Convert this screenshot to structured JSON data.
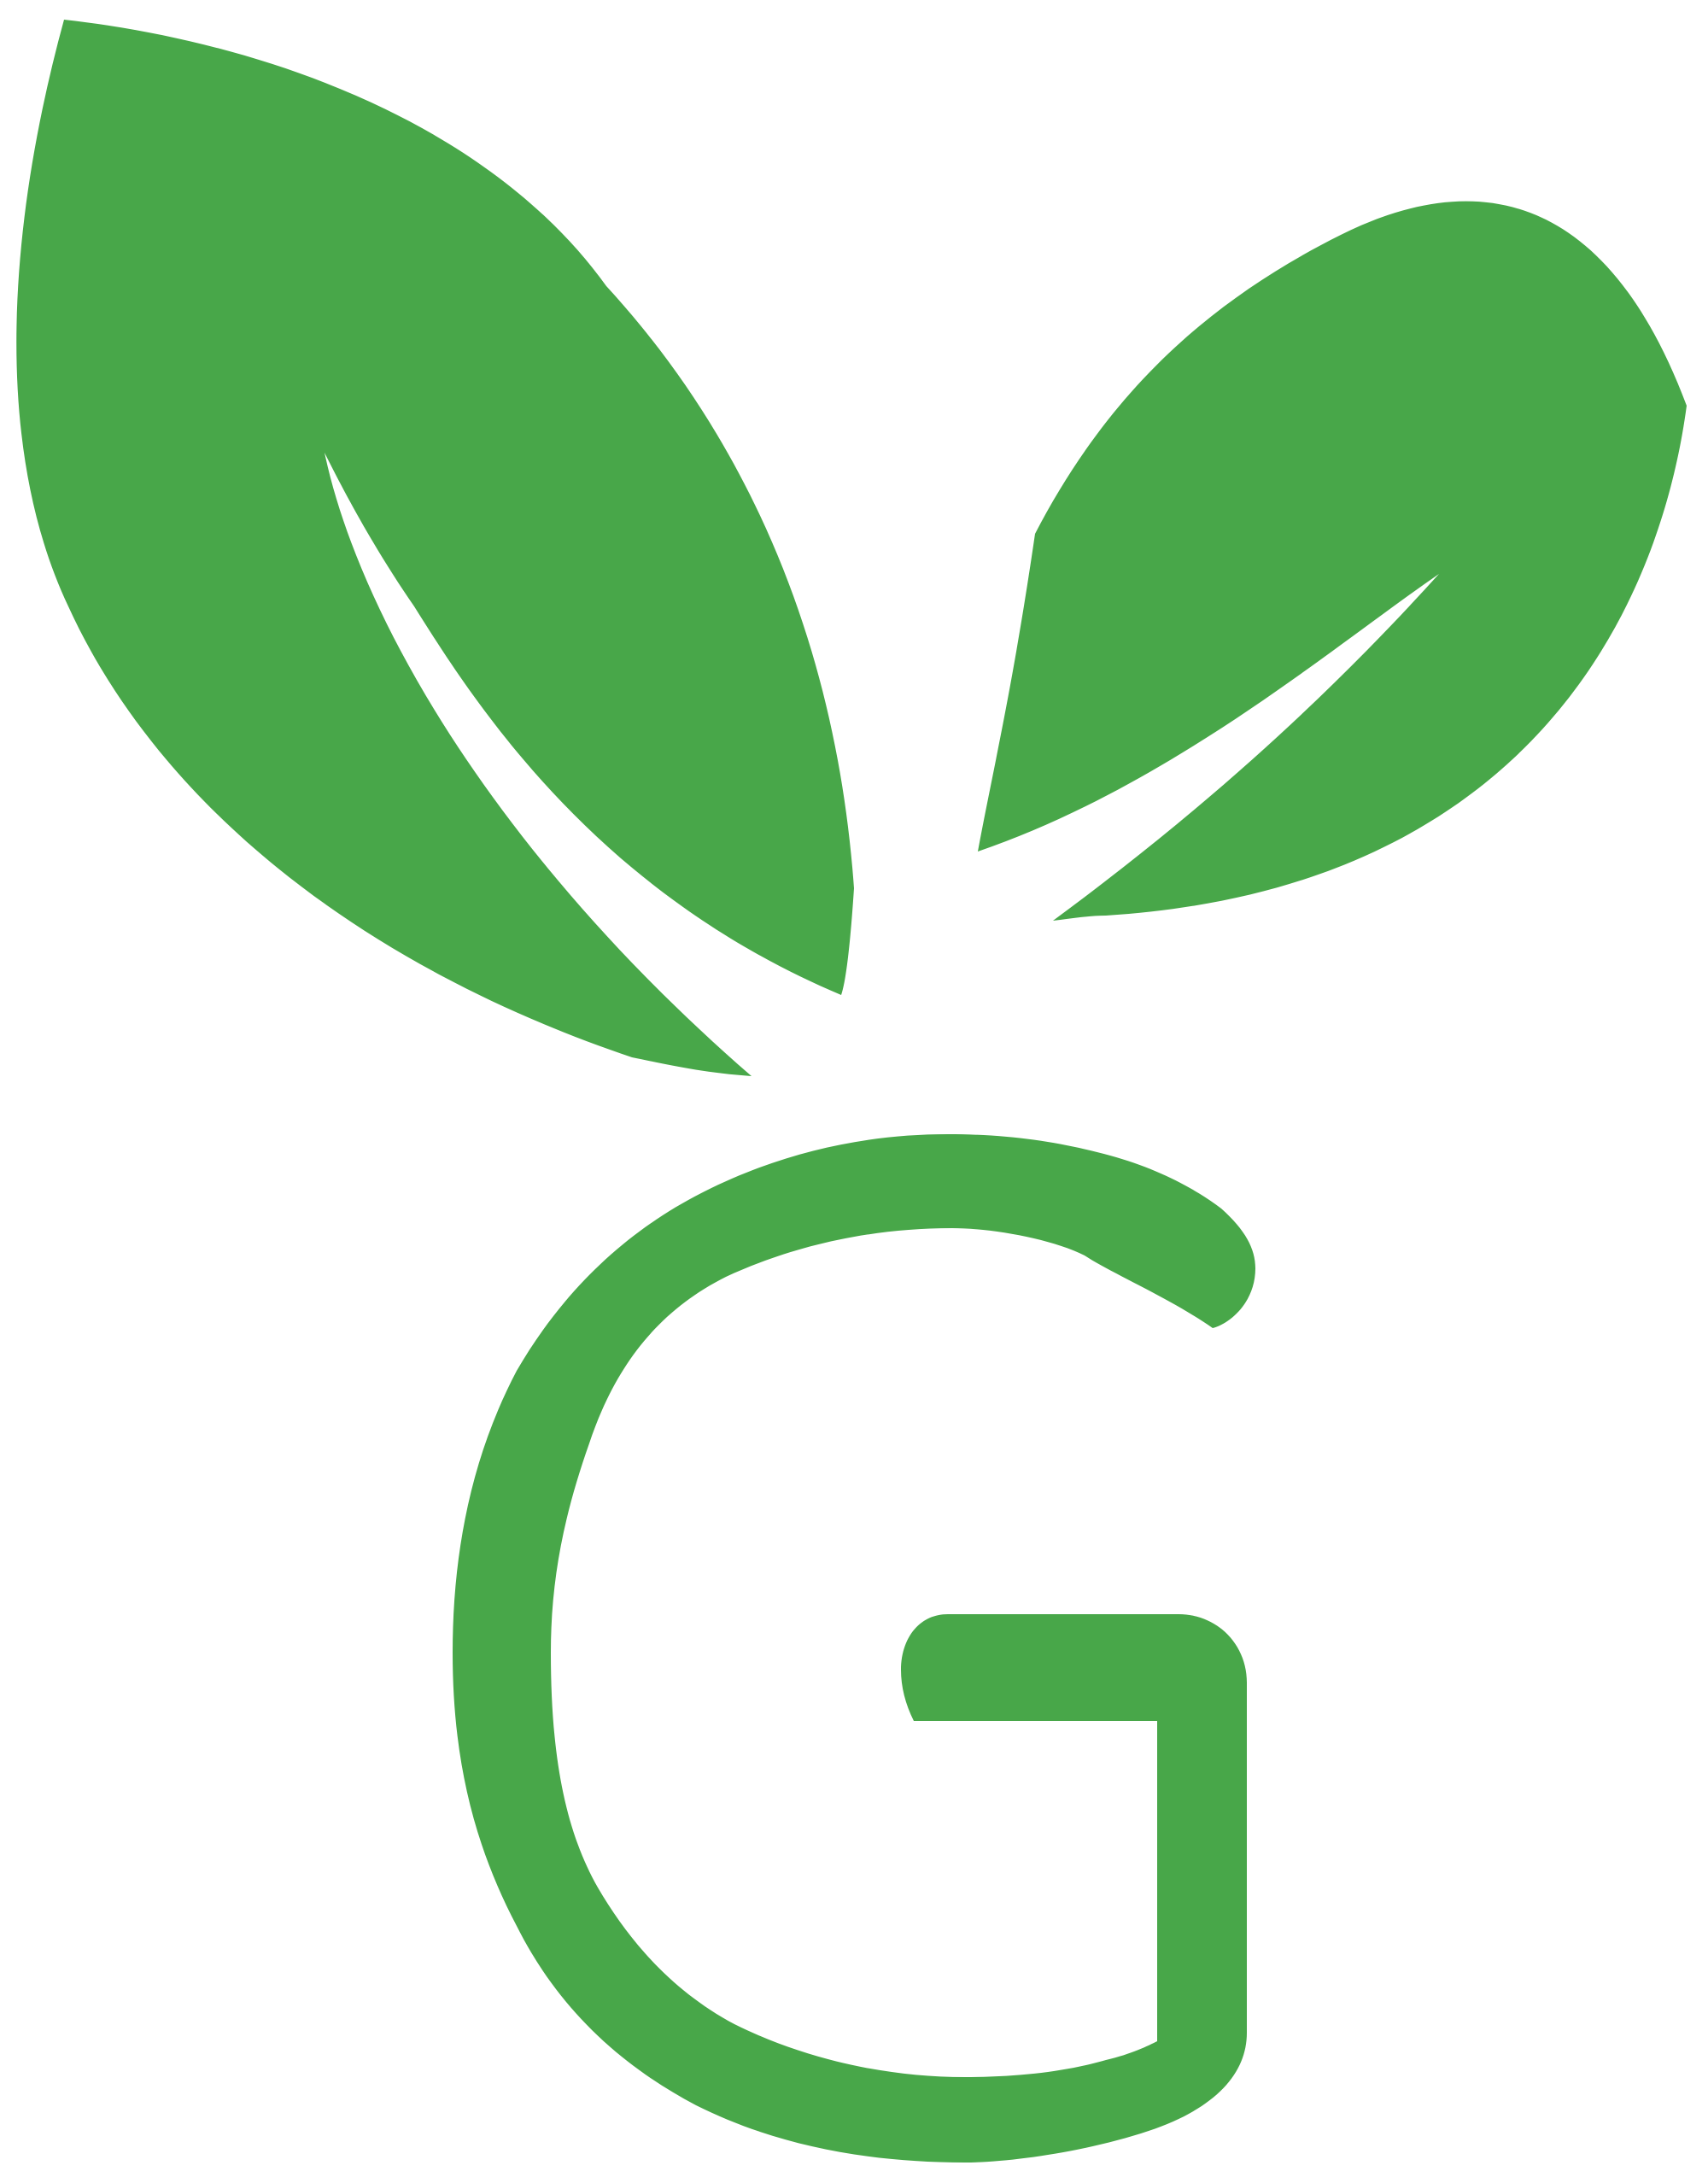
{
  "logo": {
    "name": "G sprout logo",
    "letter": "G",
    "brand_color": "#48A749",
    "background_color": "#FFFFFF",
    "elements": [
      "large-leaf",
      "small-leaf",
      "letter-g"
    ]
  }
}
